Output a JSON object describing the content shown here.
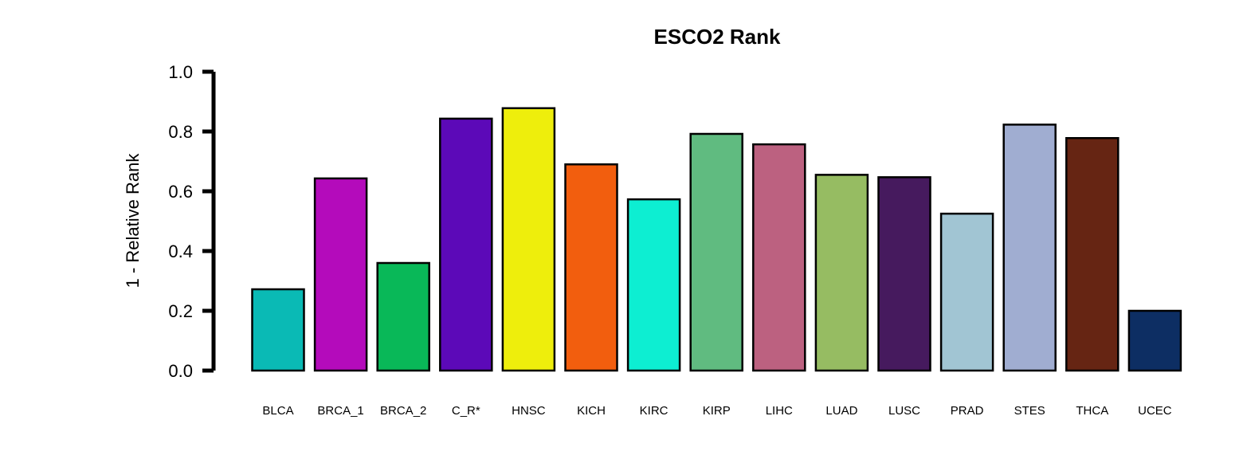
{
  "chart_data": {
    "type": "bar",
    "title": "ESCO2 Rank",
    "ylabel": "1 - Relative Rank",
    "xlabel": "",
    "ylim": [
      0,
      1.0
    ],
    "yticks": [
      "0.0",
      "0.2",
      "0.4",
      "0.6",
      "0.8",
      "1.0"
    ],
    "grid": false,
    "categories": [
      "BLCA",
      "BRCA_1",
      "BRCA_2",
      "C_R*",
      "HNSC",
      "KICH",
      "KIRC",
      "KIRP",
      "LIHC",
      "LUAD",
      "LUSC",
      "PRAD",
      "STES",
      "THCA",
      "UCEC"
    ],
    "values": [
      0.272,
      0.643,
      0.36,
      0.843,
      0.878,
      0.69,
      0.573,
      0.792,
      0.757,
      0.655,
      0.647,
      0.525,
      0.823,
      0.778,
      0.2
    ],
    "colors": [
      "#0ABAB5",
      "#B40BBB",
      "#09B858",
      "#5C09B8",
      "#EEEE0C",
      "#F25E0E",
      "#0DEED2",
      "#60BB80",
      "#BC6180",
      "#96BC62",
      "#461A5E",
      "#A1C5D3",
      "#A0ADD1",
      "#662513",
      "#0D2E63"
    ]
  }
}
